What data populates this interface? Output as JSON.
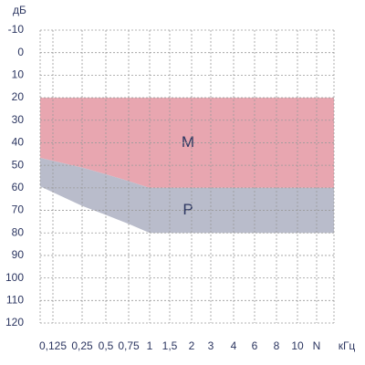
{
  "chart_data": {
    "type": "area-band",
    "y_label": "дБ",
    "x_unit": "кГц",
    "categories": [
      "0,125",
      "0,25",
      "0,5",
      "0,75",
      "1",
      "1,5",
      "2",
      "3",
      "4",
      "6",
      "8",
      "10",
      "N"
    ],
    "ylim": [
      -10,
      120
    ],
    "yticks": [
      -10,
      0,
      10,
      20,
      30,
      40,
      50,
      60,
      70,
      80,
      90,
      100,
      110,
      120
    ],
    "y_inverted": true,
    "grid": true,
    "series": [
      {
        "name": "M",
        "color": "#e8a6b0",
        "top": [
          20,
          20,
          20,
          20,
          20,
          20,
          20,
          20,
          20,
          20,
          20,
          20,
          20
        ],
        "bottom": [
          48,
          51,
          54,
          57,
          60,
          60,
          60,
          60,
          60,
          60,
          60,
          60,
          60
        ]
      },
      {
        "name": "P",
        "color": "#b9bccb",
        "top": [
          48,
          51,
          54,
          57,
          60,
          60,
          60,
          60,
          60,
          60,
          60,
          60,
          60
        ],
        "bottom": [
          62,
          68,
          72,
          76,
          80,
          80,
          80,
          80,
          80,
          80,
          80,
          80,
          80
        ]
      }
    ]
  }
}
